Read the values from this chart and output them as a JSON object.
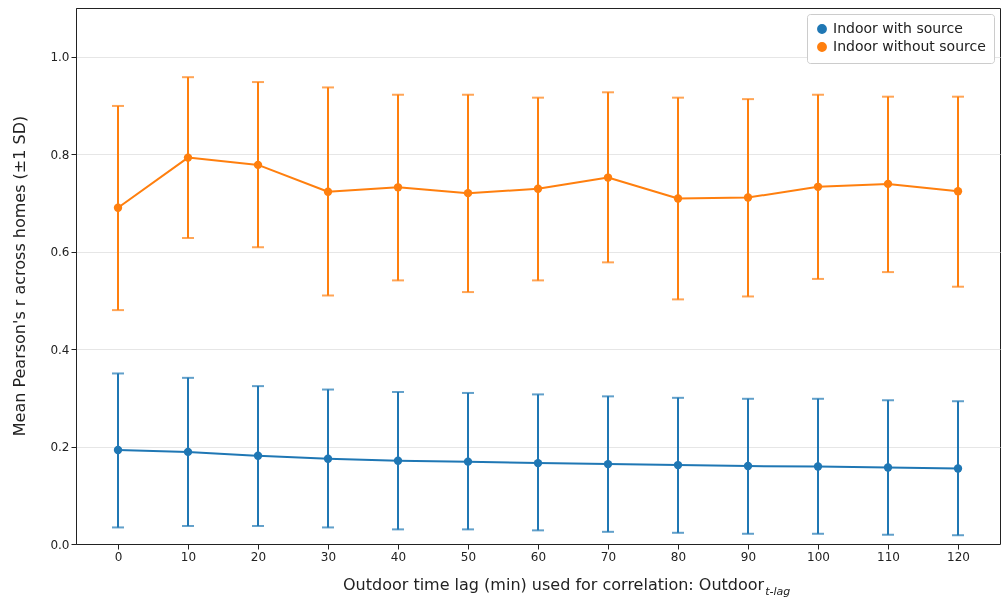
{
  "chart_data": {
    "type": "line",
    "xlabel": "Outdoor time lag (min) used for correlation: Outdoor$_{t-lag}$",
    "ylabel": "Mean Pearson's r across homes (±1 SD)",
    "x": [
      0,
      10,
      20,
      30,
      40,
      50,
      60,
      70,
      80,
      90,
      100,
      110,
      120
    ],
    "series": [
      {
        "name": "Indoor with source",
        "color": "#1f77b4",
        "values": [
          0.193,
          0.189,
          0.181,
          0.175,
          0.171,
          0.169,
          0.166,
          0.164,
          0.162,
          0.16,
          0.159,
          0.157,
          0.155
        ],
        "errors": [
          [
            0.034,
            0.35
          ],
          [
            0.037,
            0.341
          ],
          [
            0.037,
            0.324
          ],
          [
            0.034,
            0.317
          ],
          [
            0.03,
            0.312
          ],
          [
            0.03,
            0.31
          ],
          [
            0.028,
            0.307
          ],
          [
            0.025,
            0.303
          ],
          [
            0.023,
            0.3
          ],
          [
            0.021,
            0.298
          ],
          [
            0.021,
            0.298
          ],
          [
            0.019,
            0.295
          ],
          [
            0.018,
            0.293
          ]
        ]
      },
      {
        "name": "Indoor without source",
        "color": "#ff7f0e",
        "values": [
          0.69,
          0.793,
          0.778,
          0.723,
          0.732,
          0.72,
          0.729,
          0.752,
          0.709,
          0.711,
          0.733,
          0.739,
          0.724
        ],
        "errors": [
          [
            0.48,
            0.899
          ],
          [
            0.628,
            0.958
          ],
          [
            0.609,
            0.948
          ],
          [
            0.51,
            0.937
          ],
          [
            0.541,
            0.922
          ],
          [
            0.517,
            0.922
          ],
          [
            0.541,
            0.916
          ],
          [
            0.578,
            0.927
          ],
          [
            0.502,
            0.916
          ],
          [
            0.508,
            0.913
          ],
          [
            0.544,
            0.922
          ],
          [
            0.558,
            0.918
          ],
          [
            0.528,
            0.918
          ]
        ]
      }
    ],
    "xlim": [
      -6,
      126
    ],
    "xticks": [
      0,
      10,
      20,
      30,
      40,
      50,
      60,
      70,
      80,
      90,
      100,
      110,
      120
    ],
    "ylim": [
      0,
      1.1
    ],
    "yticks": [
      {
        "value": 0,
        "label": "0.0"
      },
      {
        "value": 0.2,
        "label": "0.2"
      },
      {
        "value": 0.4,
        "label": "0.4"
      },
      {
        "value": 0.6,
        "label": "0.6"
      },
      {
        "value": 0.8,
        "label": "0.8"
      },
      {
        "value": 1.0,
        "label": "1.0"
      }
    ],
    "grid": "y",
    "legend": "top right",
    "marker": "circle",
    "line_style": "solid"
  }
}
